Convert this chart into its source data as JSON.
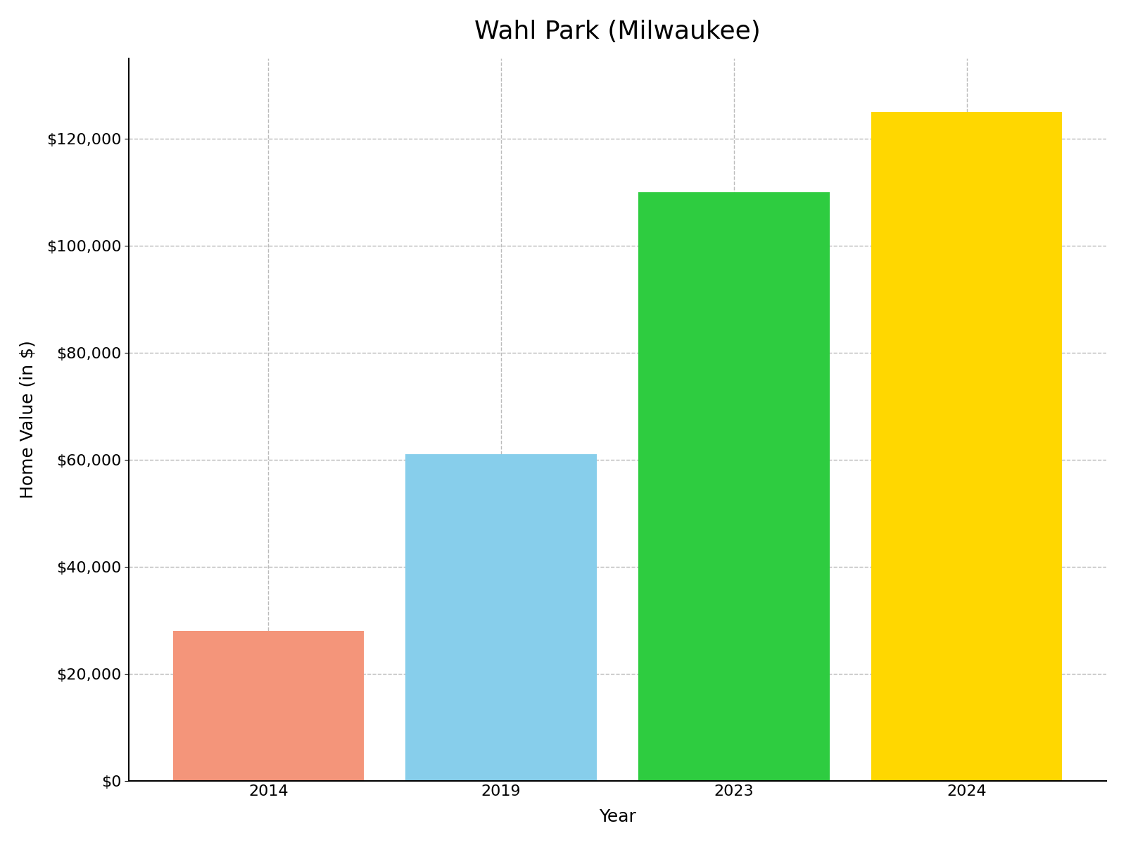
{
  "title": "Wahl Park (Milwaukee)",
  "xlabel": "Year",
  "ylabel": "Home Value (in $)",
  "categories": [
    "2014",
    "2019",
    "2023",
    "2024"
  ],
  "values": [
    28000,
    61000,
    110000,
    125000
  ],
  "bar_colors": [
    "#F4957A",
    "#87CEEB",
    "#2ECC40",
    "#FFD700"
  ],
  "ylim": [
    0,
    135000
  ],
  "yticks": [
    0,
    20000,
    40000,
    60000,
    80000,
    100000,
    120000
  ],
  "background_color": "#FFFFFF",
  "title_fontsize": 26,
  "axis_label_fontsize": 18,
  "tick_fontsize": 16,
  "grid_color": "#BBBBBB",
  "grid_linestyle": "--",
  "bar_width": 0.82
}
